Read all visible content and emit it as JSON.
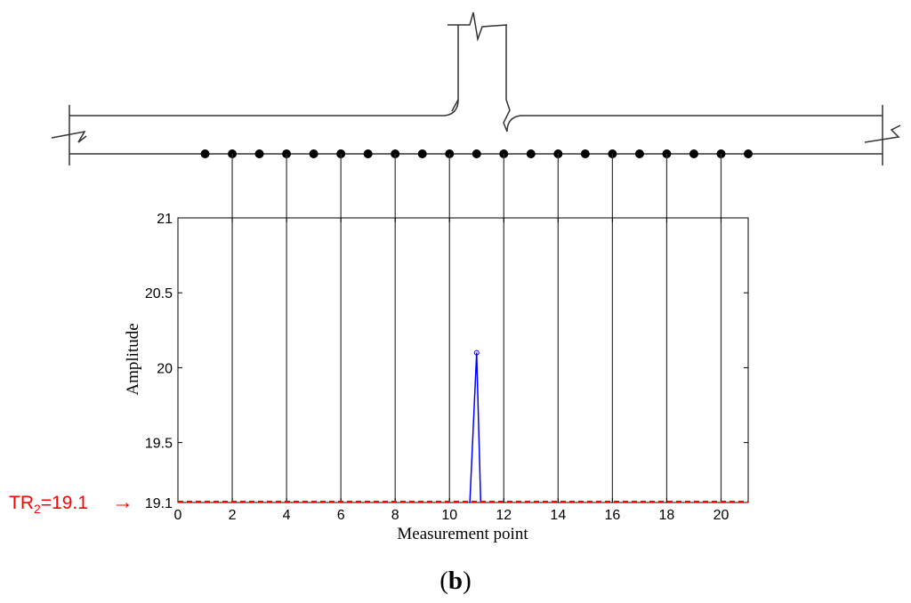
{
  "chart_data": {
    "type": "line",
    "xlabel": "Measurement point",
    "ylabel": "Amplitude",
    "xlim": [
      0,
      21
    ],
    "ylim": [
      19.1,
      21
    ],
    "xticks": [
      0,
      2,
      4,
      6,
      8,
      10,
      12,
      14,
      16,
      18,
      20
    ],
    "yticks": [
      19.1,
      19.5,
      20,
      20.5,
      21
    ],
    "ytick_labels": [
      "19.1",
      "19.5",
      "20",
      "20.5",
      "21"
    ],
    "series": [
      {
        "color": "#0000ff",
        "x": [
          10.75,
          11,
          11.15
        ],
        "y": [
          19.1,
          20.1,
          19.1
        ],
        "marker_x": 11,
        "marker_y": 20.1
      }
    ],
    "threshold": {
      "value": 19.1,
      "label_main": "TR",
      "label_sub": "2",
      "label_rest": "=19.1",
      "arrow": "→",
      "color": "#ff0000"
    },
    "measurement_points": [
      1,
      2,
      3,
      4,
      5,
      6,
      7,
      8,
      9,
      10,
      11,
      12,
      13,
      14,
      15,
      16,
      17,
      18,
      19,
      20,
      21
    ],
    "guide_points": [
      2,
      4,
      6,
      8,
      10,
      12,
      14,
      16,
      18,
      20
    ],
    "grid": false,
    "legend": "none"
  },
  "caption": "b",
  "colors": {
    "axis": "#000000",
    "line": "#0000ff",
    "threshold": "#ff0000",
    "structure": "#333333"
  }
}
